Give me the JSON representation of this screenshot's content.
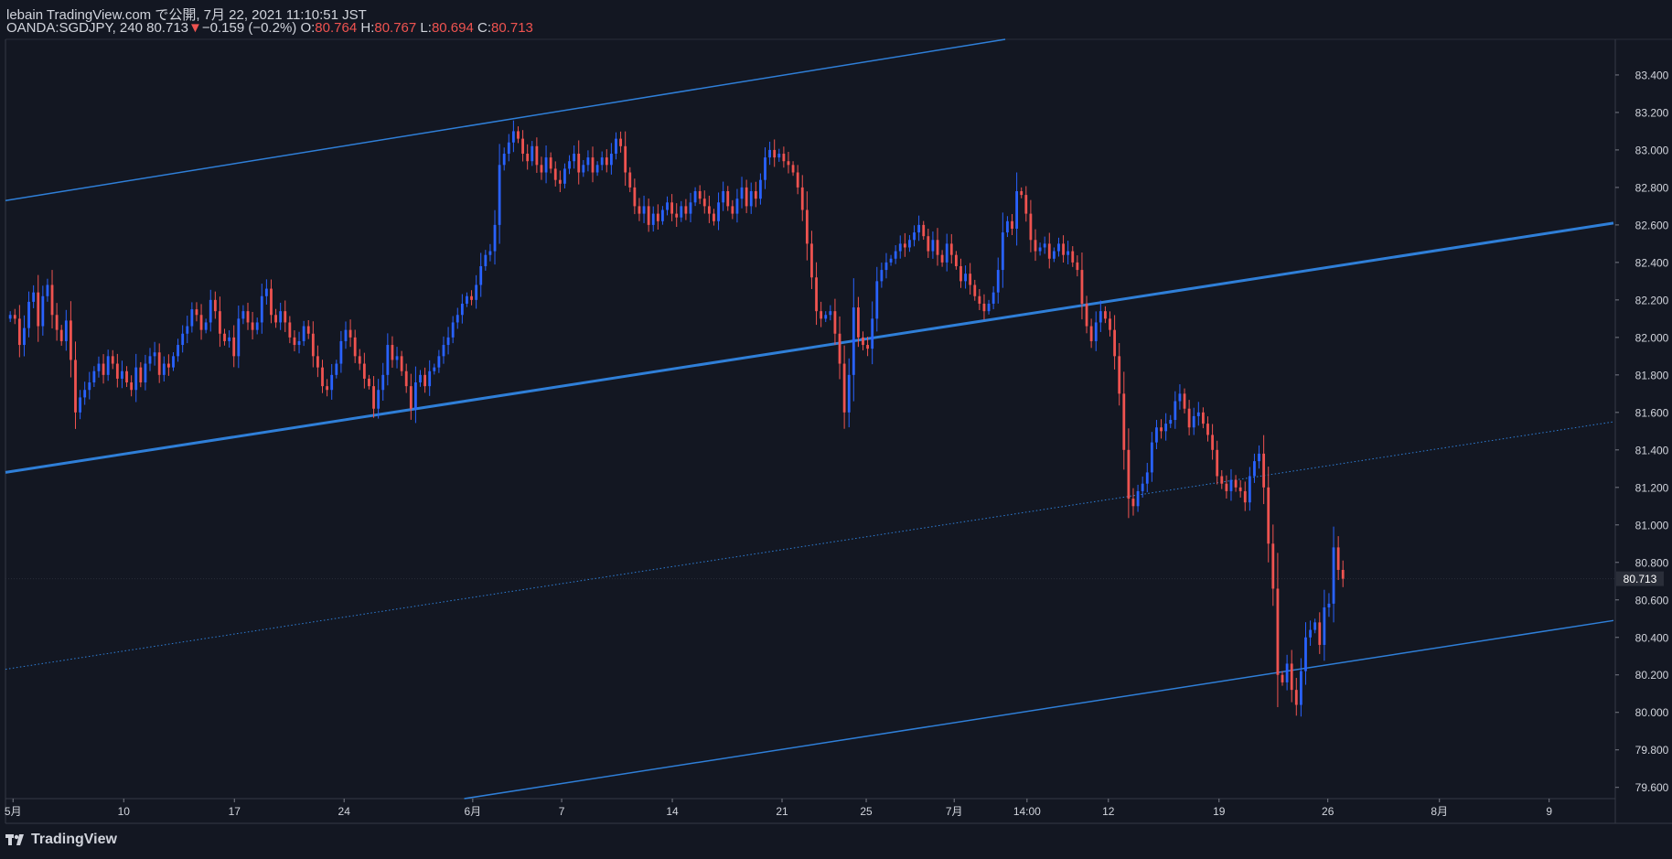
{
  "header": {
    "published": "lebain TradingView.com で公開, 7月 22, 2021 11:10:51 JST",
    "symbol": "OANDA:SGDJPY, 240",
    "last": "80.713",
    "arrow": "▼",
    "change": "−0.159 (−0.2%)",
    "o_label": "O:",
    "o": "80.764",
    "h_label": "H:",
    "h": "80.767",
    "l_label": "L:",
    "l": "80.694",
    "c_label": "C:",
    "c": "80.713"
  },
  "footer": {
    "brand": "TradingView",
    "logo_icon": "tradingview-logo-icon"
  },
  "colors": {
    "background": "#131722",
    "up": "#2962ff",
    "down": "#ef5350",
    "channel": "#2f7fd8",
    "text": "#d1d4dc",
    "grid": "#2a2e39"
  },
  "chart_data": {
    "type": "candlestick",
    "ylim": [
      79.54,
      83.59
    ],
    "y_ticks": [
      "79.600",
      "79.800",
      "80.000",
      "80.200",
      "80.400",
      "80.600",
      "80.800",
      "81.000",
      "81.200",
      "81.400",
      "81.600",
      "81.800",
      "82.000",
      "82.200",
      "82.400",
      "82.600",
      "82.800",
      "83.000",
      "83.200",
      "83.400"
    ],
    "last_price_label": "80.713",
    "last_price": 80.713,
    "x_ticks": [
      {
        "label": "5月",
        "t": 0.8
      },
      {
        "label": "10",
        "t": 12.5
      },
      {
        "label": "17",
        "t": 24.2
      },
      {
        "label": "24",
        "t": 35.8
      },
      {
        "label": "6月",
        "t": 49.4
      },
      {
        "label": "7",
        "t": 58.8
      },
      {
        "label": "14",
        "t": 70.5
      },
      {
        "label": "21",
        "t": 82.1
      },
      {
        "label": "25",
        "t": 91.0
      },
      {
        "label": "7月",
        "t": 100.3
      },
      {
        "label": "14:00",
        "t": 108.0
      },
      {
        "label": "12",
        "t": 116.6
      },
      {
        "label": "19",
        "t": 128.3
      },
      {
        "label": "26",
        "t": 139.8
      },
      {
        "label": "8月",
        "t": 151.6
      },
      {
        "label": "9",
        "t": 163.2
      }
    ],
    "x_range": [
      0,
      170
    ],
    "trend_lines": [
      {
        "name": "upper",
        "x1": 0,
        "y1": 82.73,
        "x2": 105.7,
        "y2": 83.59,
        "width": 1.5,
        "style": "solid"
      },
      {
        "name": "middle",
        "x1": 0,
        "y1": 81.28,
        "x2": 170,
        "y2": 82.61,
        "width": 3,
        "style": "solid"
      },
      {
        "name": "dotted",
        "x1": 0,
        "y1": 80.23,
        "x2": 170,
        "y2": 81.55,
        "width": 1,
        "style": "dotted"
      },
      {
        "name": "lower",
        "x1": 48.5,
        "y1": 79.54,
        "x2": 170,
        "y2": 80.49,
        "width": 1.5,
        "style": "solid"
      }
    ],
    "closes": [
      82.12,
      82.1,
      81.96,
      82.05,
      82.19,
      82.24,
      82.06,
      82.22,
      82.28,
      82.12,
      82.04,
      81.98,
      82.09,
      81.88,
      81.6,
      81.68,
      81.72,
      81.76,
      81.82,
      81.86,
      81.8,
      81.9,
      81.86,
      81.78,
      81.82,
      81.76,
      81.72,
      81.84,
      81.76,
      81.86,
      81.9,
      81.92,
      81.8,
      81.86,
      81.84,
      81.9,
      81.96,
      82.02,
      82.06,
      82.15,
      82.12,
      82.04,
      82.08,
      82.2,
      82.14,
      82.02,
      81.98,
      82.0,
      81.9,
      82.1,
      82.14,
      82.08,
      82.04,
      82.08,
      82.22,
      82.26,
      82.12,
      82.08,
      82.14,
      82.08,
      82.0,
      81.96,
      81.98,
      82.06,
      82.02,
      81.9,
      81.84,
      81.74,
      81.72,
      81.8,
      81.86,
      81.98,
      82.04,
      82.0,
      81.9,
      81.86,
      81.78,
      81.74,
      81.62,
      81.72,
      81.8,
      81.96,
      81.88,
      81.9,
      81.82,
      81.74,
      81.62,
      81.76,
      81.8,
      81.74,
      81.82,
      81.84,
      81.9,
      81.96,
      82.0,
      82.08,
      82.12,
      82.18,
      82.22,
      82.2,
      82.28,
      82.38,
      82.44,
      82.46,
      82.6,
      82.92,
      82.98,
      83.04,
      83.1,
      83.06,
      82.98,
      82.94,
      83.02,
      82.92,
      82.88,
      82.96,
      82.9,
      82.84,
      82.82,
      82.9,
      82.94,
      82.98,
      82.88,
      82.92,
      82.96,
      82.88,
      82.92,
      82.96,
      82.92,
      82.98,
      83.06,
      83.02,
      82.88,
      82.8,
      82.7,
      82.66,
      82.7,
      82.6,
      82.66,
      82.62,
      82.68,
      82.72,
      82.66,
      82.64,
      82.7,
      82.66,
      82.72,
      82.78,
      82.74,
      82.7,
      82.66,
      82.62,
      82.72,
      82.78,
      82.7,
      82.66,
      82.74,
      82.8,
      82.7,
      82.78,
      82.74,
      82.84,
      82.96,
      83.0,
      82.96,
      82.98,
      82.94,
      82.92,
      82.88,
      82.8,
      82.68,
      82.5,
      82.32,
      82.14,
      82.1,
      82.12,
      82.14,
      82.02,
      81.86,
      81.6,
      81.8,
      82.16,
      82.0,
      81.96,
      81.94,
      82.1,
      82.3,
      82.36,
      82.4,
      82.42,
      82.46,
      82.5,
      82.48,
      82.52,
      82.56,
      82.6,
      82.54,
      82.46,
      82.52,
      82.44,
      82.4,
      82.5,
      82.44,
      82.38,
      82.3,
      82.34,
      82.28,
      82.22,
      82.18,
      82.14,
      82.18,
      82.24,
      82.36,
      82.56,
      82.62,
      82.58,
      82.78,
      82.76,
      82.66,
      82.52,
      82.46,
      82.48,
      82.5,
      82.42,
      82.46,
      82.5,
      82.44,
      82.46,
      82.4,
      82.36,
      82.18,
      82.06,
      81.98,
      82.08,
      82.14,
      82.1,
      82.04,
      81.9,
      81.7,
      81.4,
      81.14,
      81.1,
      81.18,
      81.22,
      81.28,
      81.44,
      81.52,
      81.5,
      81.54,
      81.56,
      81.66,
      81.7,
      81.62,
      81.52,
      81.58,
      81.6,
      81.54,
      81.48,
      81.4,
      81.26,
      81.22,
      81.18,
      81.24,
      81.2,
      81.18,
      81.12,
      81.26,
      81.34,
      81.38,
      81.2,
      80.9,
      80.66,
      80.2,
      80.16,
      80.26,
      80.12,
      80.04,
      80.22,
      80.4,
      80.44,
      80.48,
      80.36,
      80.56,
      80.58,
      80.88,
      80.76,
      80.713
    ]
  }
}
